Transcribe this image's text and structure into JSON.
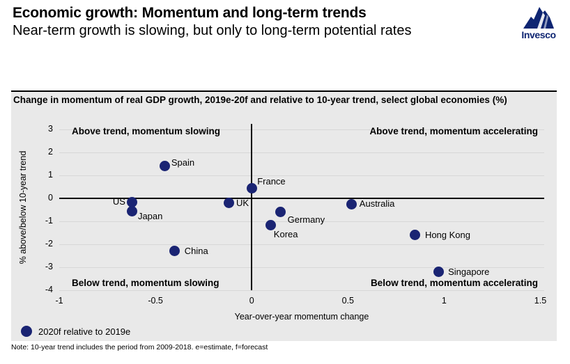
{
  "header": {
    "title": "Economic growth: Momentum and long-term trends",
    "subtitle": "Near-term growth is slowing, but only to long-term potential rates",
    "logo_text": "Invesco"
  },
  "colors": {
    "dot": "#1a2473",
    "logo": "#0e2572",
    "panel-bg": "#e9e9e9",
    "grid": "#d7d7d7",
    "axis": "#000000"
  },
  "chart_data": {
    "type": "scatter",
    "title": "Change in momentum of real GDP growth, 2019e-20f and relative to 10-year trend, select global economies (%)",
    "xlabel": "Year-over-year momentum change",
    "ylabel": "% above/below 10-year trend",
    "xlim": [
      -1,
      1.52
    ],
    "ylim": [
      -4,
      3.25
    ],
    "x_ticks": [
      -1,
      -0.5,
      0,
      0.5,
      1,
      1.5
    ],
    "y_ticks": [
      3,
      2,
      1,
      0,
      -1,
      -2,
      -3,
      -4
    ],
    "grid": true,
    "legend_position": "bottom-left",
    "quadrant_labels": {
      "top_left": "Above trend, momentum slowing",
      "top_right": "Above trend, momentum accelerating",
      "bottom_left": "Below trend, momentum slowing",
      "bottom_right": "Below trend, momentum accelerating"
    },
    "series": [
      {
        "name": "2020f relative to 2019e",
        "points": [
          {
            "label": "Spain",
            "x": -0.45,
            "y": 1.4,
            "anchor": "right",
            "dx": 9,
            "dy": -13
          },
          {
            "label": "France",
            "x": 0.0,
            "y": 0.45,
            "anchor": "right",
            "dx": 8,
            "dy": -17
          },
          {
            "label": "US",
            "x": -0.62,
            "y": -0.15,
            "anchor": "left",
            "dx": -10,
            "dy": -8
          },
          {
            "label": "Japan",
            "x": -0.62,
            "y": -0.55,
            "anchor": "right",
            "dx": 8,
            "dy": 0
          },
          {
            "label": "UK",
            "x": -0.12,
            "y": -0.2,
            "anchor": "right",
            "dx": 11,
            "dy": -8
          },
          {
            "label": "Germany",
            "x": 0.15,
            "y": -0.6,
            "anchor": "right",
            "dx": 10,
            "dy": 3
          },
          {
            "label": "Korea",
            "x": 0.1,
            "y": -1.15,
            "anchor": "right",
            "dx": 4,
            "dy": 6
          },
          {
            "label": "China",
            "x": -0.4,
            "y": -2.3,
            "anchor": "right",
            "dx": 14,
            "dy": -8
          },
          {
            "label": "Australia",
            "x": 0.52,
            "y": -0.25,
            "anchor": "right",
            "dx": 11,
            "dy": -8
          },
          {
            "label": "Hong Kong",
            "x": 0.85,
            "y": -1.6,
            "anchor": "right",
            "dx": 14,
            "dy": -8
          },
          {
            "label": "Singapore",
            "x": 0.97,
            "y": -3.2,
            "anchor": "right",
            "dx": 14,
            "dy": -8
          }
        ]
      }
    ]
  },
  "note": "Note: 10-year trend includes the period from 2009-2018. e=estimate, f=forecast"
}
